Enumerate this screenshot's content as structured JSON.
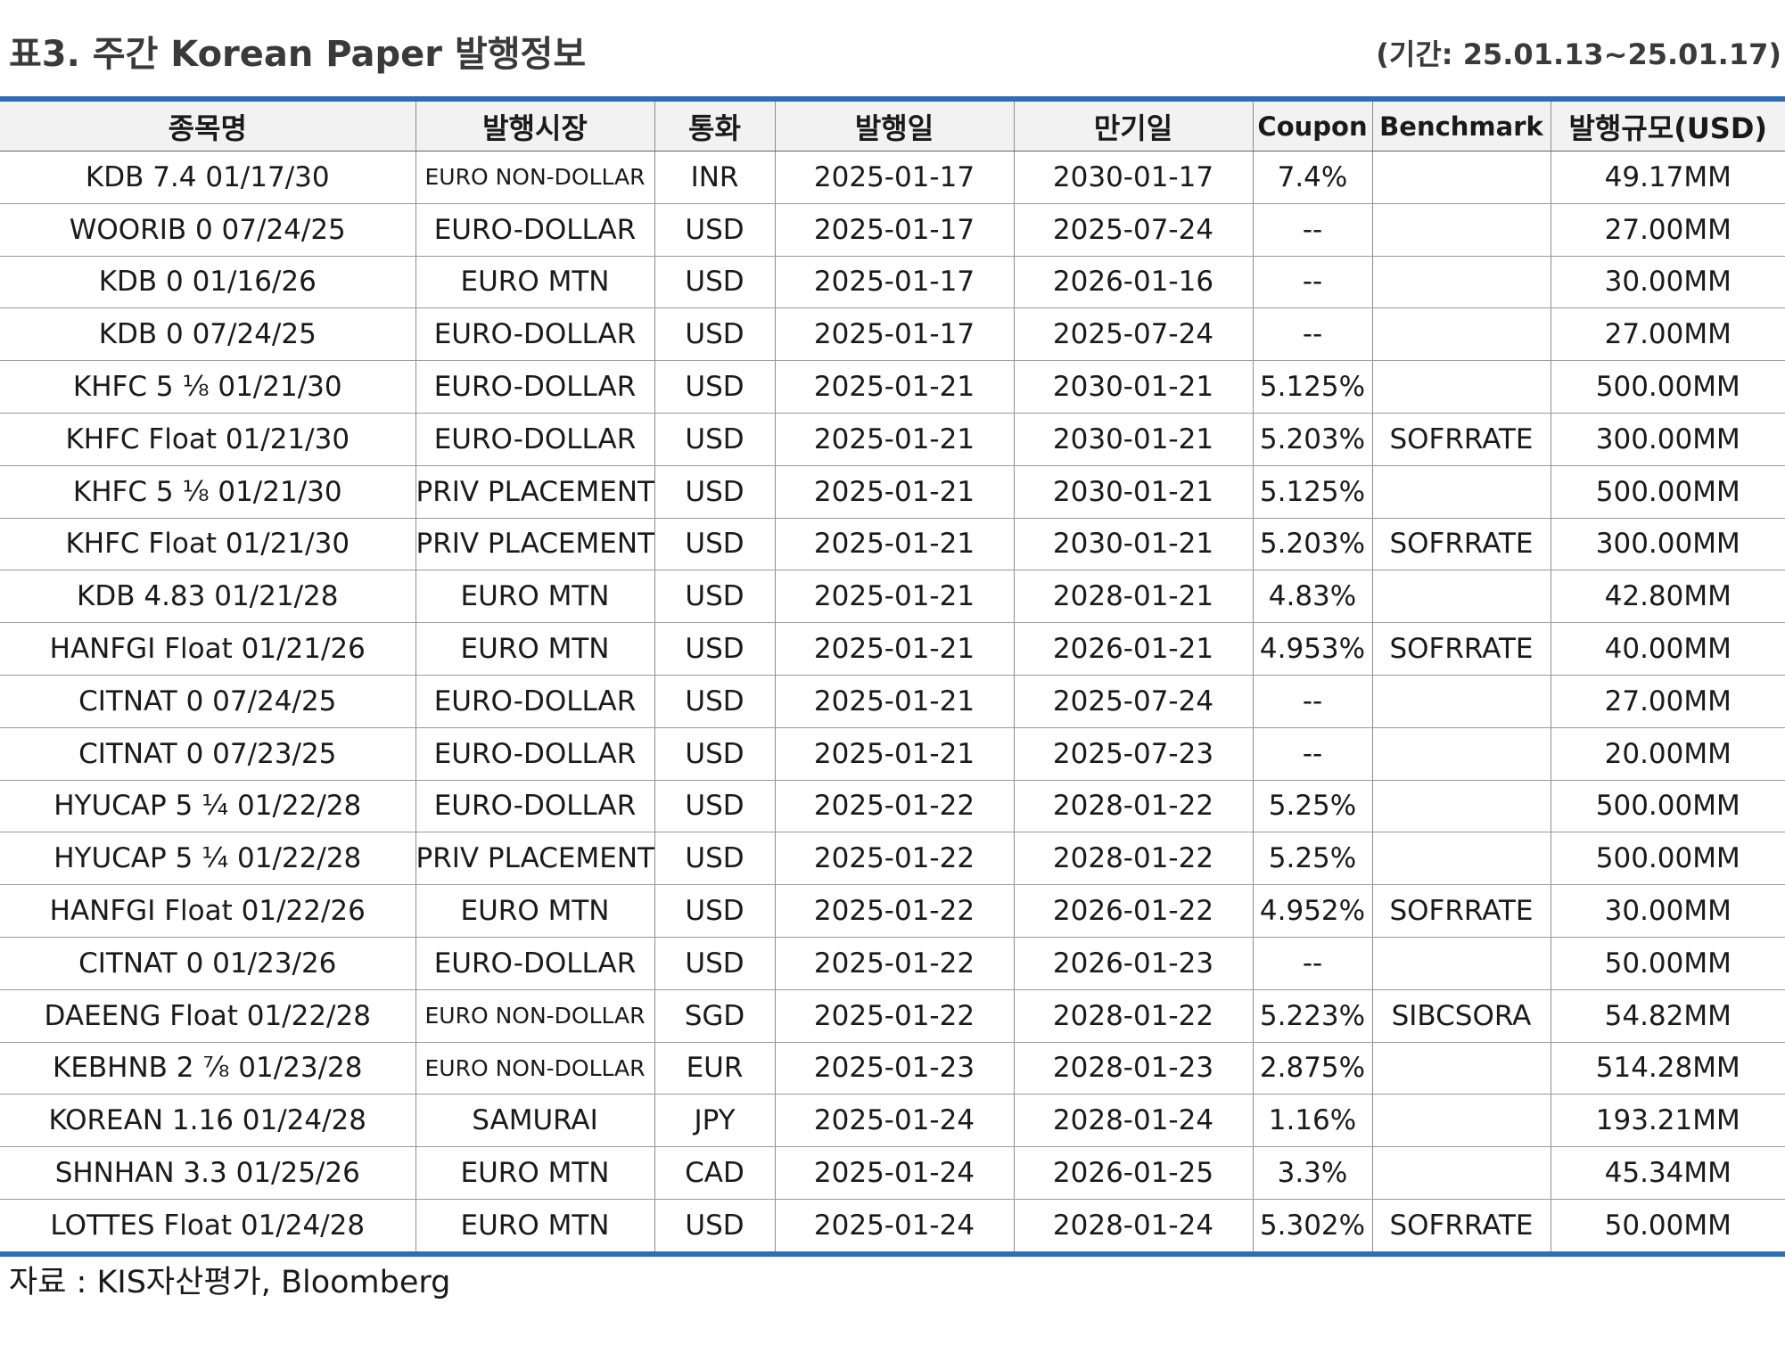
{
  "header": {
    "title": "표3. 주간 Korean Paper 발행정보",
    "period": "(기간: 25.01.13~25.01.17)"
  },
  "table": {
    "columns": [
      "종목명",
      "발행시장",
      "통화",
      "발행일",
      "만기일",
      "Coupon",
      "Benchmark",
      "발행규모(USD)"
    ],
    "rows": [
      [
        "KDB 7.4 01/17/30",
        "EURO NON-DOLLAR",
        "INR",
        "2025-01-17",
        "2030-01-17",
        "7.4%",
        "",
        "49.17MM"
      ],
      [
        "WOORIB 0 07/24/25",
        "EURO-DOLLAR",
        "USD",
        "2025-01-17",
        "2025-07-24",
        "--",
        "",
        "27.00MM"
      ],
      [
        "KDB 0 01/16/26",
        "EURO MTN",
        "USD",
        "2025-01-17",
        "2026-01-16",
        "--",
        "",
        "30.00MM"
      ],
      [
        "KDB 0 07/24/25",
        "EURO-DOLLAR",
        "USD",
        "2025-01-17",
        "2025-07-24",
        "--",
        "",
        "27.00MM"
      ],
      [
        "KHFC 5 ⅛ 01/21/30",
        "EURO-DOLLAR",
        "USD",
        "2025-01-21",
        "2030-01-21",
        "5.125%",
        "",
        "500.00MM"
      ],
      [
        "KHFC Float 01/21/30",
        "EURO-DOLLAR",
        "USD",
        "2025-01-21",
        "2030-01-21",
        "5.203%",
        "SOFRRATE",
        "300.00MM"
      ],
      [
        "KHFC 5 ⅛ 01/21/30",
        "PRIV PLACEMENT",
        "USD",
        "2025-01-21",
        "2030-01-21",
        "5.125%",
        "",
        "500.00MM"
      ],
      [
        "KHFC Float 01/21/30",
        "PRIV PLACEMENT",
        "USD",
        "2025-01-21",
        "2030-01-21",
        "5.203%",
        "SOFRRATE",
        "300.00MM"
      ],
      [
        "KDB 4.83 01/21/28",
        "EURO MTN",
        "USD",
        "2025-01-21",
        "2028-01-21",
        "4.83%",
        "",
        "42.80MM"
      ],
      [
        "HANFGI Float 01/21/26",
        "EURO MTN",
        "USD",
        "2025-01-21",
        "2026-01-21",
        "4.953%",
        "SOFRRATE",
        "40.00MM"
      ],
      [
        "CITNAT 0 07/24/25",
        "EURO-DOLLAR",
        "USD",
        "2025-01-21",
        "2025-07-24",
        "--",
        "",
        "27.00MM"
      ],
      [
        "CITNAT 0 07/23/25",
        "EURO-DOLLAR",
        "USD",
        "2025-01-21",
        "2025-07-23",
        "--",
        "",
        "20.00MM"
      ],
      [
        "HYUCAP 5 ¼ 01/22/28",
        "EURO-DOLLAR",
        "USD",
        "2025-01-22",
        "2028-01-22",
        "5.25%",
        "",
        "500.00MM"
      ],
      [
        "HYUCAP 5 ¼ 01/22/28",
        "PRIV PLACEMENT",
        "USD",
        "2025-01-22",
        "2028-01-22",
        "5.25%",
        "",
        "500.00MM"
      ],
      [
        "HANFGI Float 01/22/26",
        "EURO MTN",
        "USD",
        "2025-01-22",
        "2026-01-22",
        "4.952%",
        "SOFRRATE",
        "30.00MM"
      ],
      [
        "CITNAT 0 01/23/26",
        "EURO-DOLLAR",
        "USD",
        "2025-01-22",
        "2026-01-23",
        "--",
        "",
        "50.00MM"
      ],
      [
        "DAEENG Float 01/22/28",
        "EURO NON-DOLLAR",
        "SGD",
        "2025-01-22",
        "2028-01-22",
        "5.223%",
        "SIBCSORA",
        "54.82MM"
      ],
      [
        "KEBHNB 2 ⅞ 01/23/28",
        "EURO NON-DOLLAR",
        "EUR",
        "2025-01-23",
        "2028-01-23",
        "2.875%",
        "",
        "514.28MM"
      ],
      [
        "KOREAN 1.16 01/24/28",
        "SAMURAI",
        "JPY",
        "2025-01-24",
        "2028-01-24",
        "1.16%",
        "",
        "193.21MM"
      ],
      [
        "SHNHAN 3.3 01/25/26",
        "EURO MTN",
        "CAD",
        "2025-01-24",
        "2026-01-25",
        "3.3%",
        "",
        "45.34MM"
      ],
      [
        "LOTTES Float 01/24/28",
        "EURO MTN",
        "USD",
        "2025-01-24",
        "2028-01-24",
        "5.302%",
        "SOFRRATE",
        "50.00MM"
      ]
    ]
  },
  "footer": {
    "source": "자료 : KIS자산평가, Bloomberg"
  },
  "colors": {
    "rule": "#2f6eb5",
    "header_bg": "#f2f2f2",
    "grid": "#9a9a9a"
  }
}
